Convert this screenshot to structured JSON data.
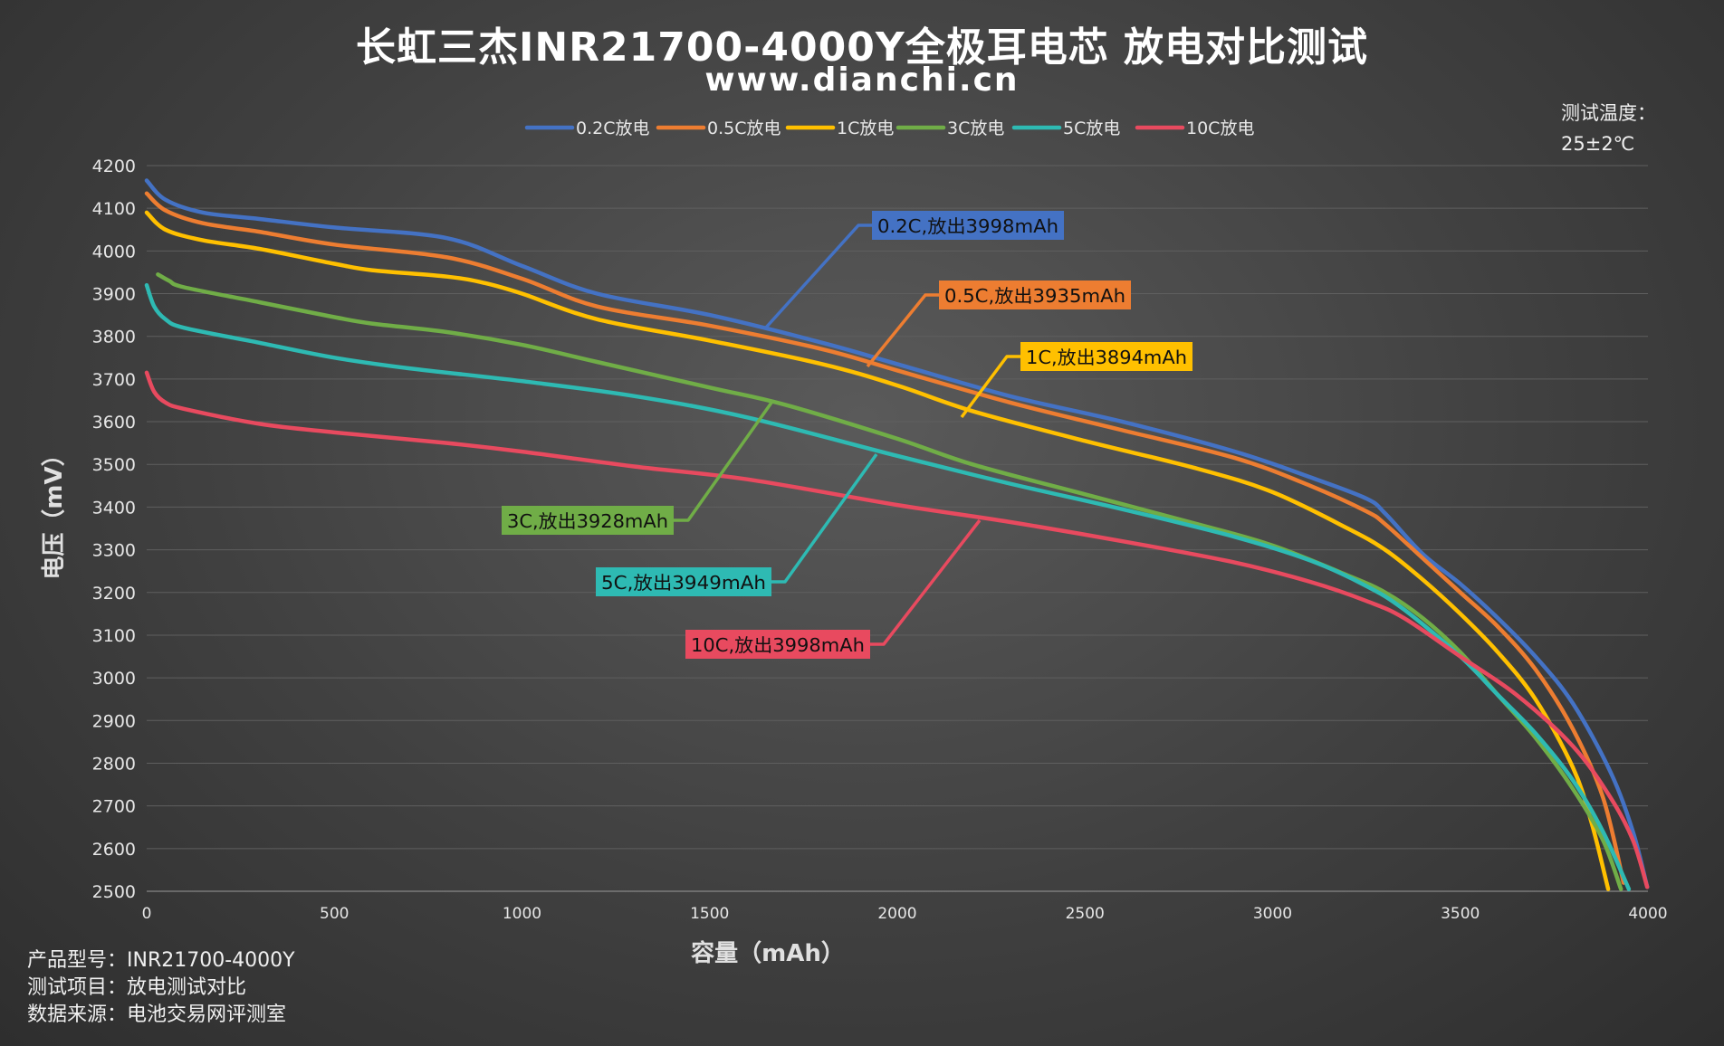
{
  "title": "长虹三杰INR21700-4000Y全极耳电芯 放电对比测试",
  "subtitle": "www.dianchi.cn",
  "temperature": {
    "line1": "测试温度：",
    "line2": "25±2℃"
  },
  "footer": {
    "product": "产品型号：INR21700-4000Y",
    "item": "测试项目：放电测试对比",
    "source": "数据来源：电池交易网评测室"
  },
  "chart_data": {
    "type": "line",
    "xlabel": "容量（mAh）",
    "ylabel": "电压（mV）",
    "xlim": [
      0,
      4000
    ],
    "ylim": [
      2500,
      4200
    ],
    "xticks": [
      0,
      500,
      1000,
      1500,
      2000,
      2500,
      3000,
      3500,
      4000
    ],
    "yticks": [
      2500,
      2600,
      2700,
      2800,
      2900,
      3000,
      3100,
      3200,
      3300,
      3400,
      3500,
      3600,
      3700,
      3800,
      3900,
      4000,
      4100,
      4200
    ],
    "grid": true,
    "legend_position": "top",
    "series": [
      {
        "name": "0.2C放电",
        "color": "#4472c4",
        "x": [
          0,
          50,
          150,
          300,
          500,
          800,
          1000,
          1200,
          1500,
          1800,
          2000,
          2300,
          2600,
          2900,
          3100,
          3250,
          3300,
          3400,
          3500,
          3600,
          3700,
          3800,
          3900,
          3960,
          3998
        ],
        "y": [
          4165,
          4120,
          4090,
          4075,
          4055,
          4030,
          3965,
          3900,
          3850,
          3785,
          3735,
          3660,
          3600,
          3530,
          3470,
          3420,
          3385,
          3290,
          3220,
          3140,
          3050,
          2940,
          2780,
          2640,
          2510
        ]
      },
      {
        "name": "0.5C放电",
        "color": "#ed7d31",
        "x": [
          0,
          50,
          150,
          300,
          500,
          800,
          1000,
          1200,
          1500,
          1800,
          2000,
          2300,
          2600,
          2900,
          3100,
          3250,
          3300,
          3400,
          3500,
          3600,
          3700,
          3800,
          3880,
          3935
        ],
        "y": [
          4135,
          4095,
          4065,
          4045,
          4015,
          3985,
          3935,
          3870,
          3825,
          3770,
          3720,
          3645,
          3580,
          3515,
          3450,
          3390,
          3360,
          3280,
          3200,
          3120,
          3020,
          2880,
          2720,
          2520
        ]
      },
      {
        "name": "1C放电",
        "color": "#ffc000",
        "x": [
          0,
          50,
          150,
          300,
          500,
          600,
          800,
          900,
          1000,
          1200,
          1500,
          1800,
          2000,
          2200,
          2500,
          2800,
          3000,
          3200,
          3300,
          3400,
          3500,
          3600,
          3700,
          3800,
          3850,
          3894
        ],
        "y": [
          4090,
          4050,
          4025,
          4005,
          3970,
          3955,
          3940,
          3925,
          3900,
          3840,
          3790,
          3735,
          3685,
          3625,
          3555,
          3490,
          3435,
          3350,
          3300,
          3230,
          3150,
          3060,
          2950,
          2790,
          2660,
          2505
        ]
      },
      {
        "name": "3C放电",
        "color": "#70ad47",
        "x": [
          30,
          60,
          100,
          300,
          500,
          600,
          800,
          1000,
          1200,
          1500,
          1700,
          2000,
          2200,
          2500,
          2800,
          3000,
          3200,
          3300,
          3400,
          3500,
          3600,
          3700,
          3800,
          3880,
          3928
        ],
        "y": [
          3945,
          3930,
          3915,
          3880,
          3845,
          3830,
          3810,
          3780,
          3740,
          3680,
          3640,
          3560,
          3500,
          3430,
          3360,
          3310,
          3240,
          3200,
          3140,
          3060,
          2960,
          2860,
          2740,
          2620,
          2505
        ]
      },
      {
        "name": "5C放电",
        "color": "#2ebab3",
        "x": [
          0,
          20,
          50,
          100,
          300,
          500,
          700,
          1000,
          1300,
          1600,
          2000,
          2300,
          2600,
          2900,
          3100,
          3250,
          3350,
          3500,
          3600,
          3700,
          3800,
          3880,
          3949
        ],
        "y": [
          3920,
          3870,
          3840,
          3820,
          3785,
          3750,
          3725,
          3695,
          3660,
          3610,
          3520,
          3455,
          3395,
          3330,
          3275,
          3215,
          3160,
          3050,
          2960,
          2870,
          2760,
          2640,
          2505
        ]
      },
      {
        "name": "10C放电",
        "color": "#e84a5f",
        "x": [
          0,
          20,
          50,
          100,
          300,
          500,
          800,
          1000,
          1300,
          1600,
          2000,
          2300,
          2600,
          2900,
          3100,
          3250,
          3350,
          3500,
          3650,
          3800,
          3900,
          3960,
          3998
        ],
        "y": [
          3715,
          3670,
          3645,
          3630,
          3595,
          3575,
          3550,
          3530,
          3495,
          3465,
          3405,
          3365,
          3320,
          3270,
          3225,
          3180,
          3140,
          3050,
          2960,
          2840,
          2720,
          2620,
          2510
        ]
      }
    ],
    "annotations": [
      {
        "text": "0.2C,放出3998mAh",
        "series": "0.2C放电"
      },
      {
        "text": "0.5C,放出3935mAh",
        "series": "0.5C放电"
      },
      {
        "text": "1C,放出3894mAh",
        "series": "1C放电"
      },
      {
        "text": "3C,放出3928mAh",
        "series": "3C放电"
      },
      {
        "text": "5C,放出3949mAh",
        "series": "5C放电"
      },
      {
        "text": "10C,放出3998mAh",
        "series": "10C放电"
      }
    ]
  }
}
